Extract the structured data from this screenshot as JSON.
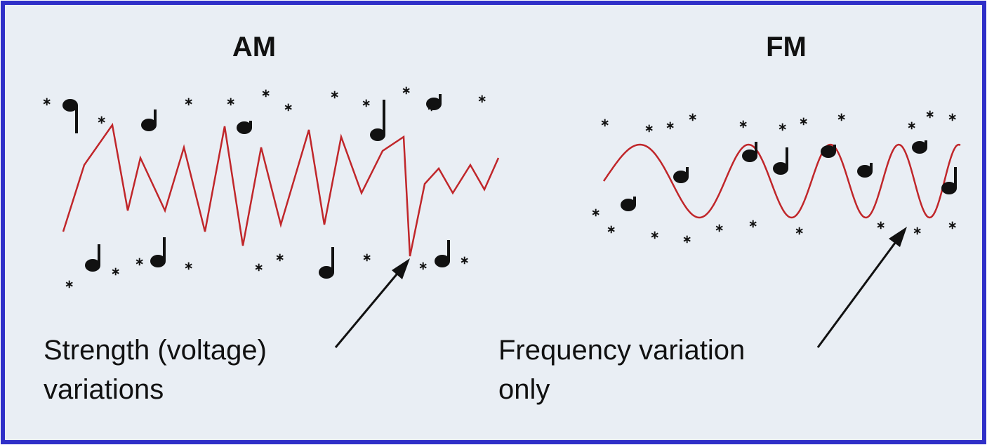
{
  "panels": [
    {
      "title": "AM",
      "caption": [
        "Strength (voltage)",
        "variations"
      ]
    },
    {
      "title": "FM",
      "caption": [
        "Frequency variation",
        "only"
      ]
    }
  ]
}
